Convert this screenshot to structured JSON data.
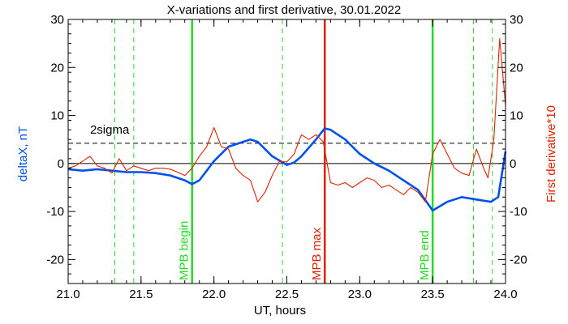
{
  "chart_data": {
    "type": "line",
    "title": "X-variations and first derivative, 30.01.2022",
    "xlabel": "UT, hours",
    "ylabel_left": "deltaX, nT",
    "ylabel_right": "First derivative*10",
    "xlim": [
      21.0,
      24.0
    ],
    "ylim": [
      -25,
      30
    ],
    "x_ticks": [
      "21.0",
      "21.5",
      "22.0",
      "22.5",
      "23.0",
      "23.5",
      "24.0"
    ],
    "x_tick_values": [
      21.0,
      21.5,
      22.0,
      22.5,
      23.0,
      23.5,
      24.0
    ],
    "y_ticks_left": [
      "-20",
      "-10",
      "0",
      "10",
      "20",
      "30"
    ],
    "y_ticks_right": [
      "-20",
      "-10",
      "0",
      "10",
      "20",
      "30"
    ],
    "y_tick_values": [
      -20,
      -10,
      0,
      10,
      20,
      30
    ],
    "zero_line": 0,
    "sigma_level": 4.2,
    "sigma_label": "2sigma",
    "colors": {
      "deltaX": "#0050ee",
      "derivative": "#dd2200",
      "green": "#22dd22",
      "red_marker": "#dd2200",
      "axis": "#000000"
    },
    "series": [
      {
        "name": "deltaX, nT",
        "color": "#0050ee",
        "x": [
          21.0,
          21.1,
          21.2,
          21.3,
          21.4,
          21.5,
          21.6,
          21.7,
          21.8,
          21.85,
          21.9,
          22.0,
          22.1,
          22.2,
          22.25,
          22.3,
          22.4,
          22.5,
          22.55,
          22.6,
          22.7,
          22.76,
          22.8,
          22.9,
          23.0,
          23.1,
          23.2,
          23.3,
          23.4,
          23.5,
          23.6,
          23.7,
          23.8,
          23.9,
          23.95,
          24.0
        ],
        "y": [
          -1.2,
          -1.5,
          -1.2,
          -1.5,
          -1.8,
          -1.8,
          -2.0,
          -2.5,
          -3.5,
          -4.3,
          -3.5,
          0.5,
          3.5,
          4.5,
          5.0,
          4.5,
          1.5,
          -0.3,
          0.2,
          1.5,
          5.0,
          7.3,
          7.0,
          5.0,
          2.0,
          0.0,
          -1.5,
          -3.5,
          -5.5,
          -9.8,
          -8.0,
          -7.0,
          -7.5,
          -8.0,
          -7.0,
          2.5
        ]
      },
      {
        "name": "First derivative*10",
        "color": "#dd2200",
        "x": [
          21.0,
          21.05,
          21.1,
          21.15,
          21.2,
          21.25,
          21.3,
          21.35,
          21.4,
          21.45,
          21.5,
          21.55,
          21.6,
          21.65,
          21.7,
          21.75,
          21.8,
          21.85,
          21.9,
          21.95,
          22.0,
          22.05,
          22.1,
          22.15,
          22.2,
          22.25,
          22.3,
          22.35,
          22.4,
          22.45,
          22.5,
          22.55,
          22.6,
          22.65,
          22.7,
          22.75,
          22.8,
          22.85,
          22.9,
          22.95,
          23.0,
          23.05,
          23.1,
          23.15,
          23.2,
          23.25,
          23.3,
          23.35,
          23.4,
          23.45,
          23.5,
          23.55,
          23.6,
          23.65,
          23.7,
          23.75,
          23.8,
          23.85,
          23.88,
          23.92,
          23.96,
          24.0
        ],
        "y": [
          -1.0,
          -0.5,
          0.5,
          1.5,
          -0.5,
          -1.0,
          -2.0,
          1.0,
          -1.5,
          -0.5,
          -1.0,
          -1.5,
          -1.0,
          -1.0,
          -1.2,
          -1.8,
          -2.5,
          -1.0,
          1.5,
          3.5,
          7.5,
          3.5,
          3.0,
          -1.0,
          -2.5,
          -3.5,
          -8.0,
          -6.0,
          -2.5,
          0.5,
          0.3,
          2.0,
          6.0,
          5.0,
          6.0,
          4.5,
          -4.0,
          -4.5,
          -4.0,
          -5.0,
          -4.0,
          -3.0,
          -3.5,
          -5.0,
          -4.5,
          -5.5,
          -6.5,
          -5.0,
          -6.0,
          -8.0,
          2.0,
          5.0,
          2.0,
          -1.0,
          -2.0,
          -2.5,
          3.0,
          -1.0,
          -3.0,
          5.0,
          26.0,
          12.0
        ]
      }
    ],
    "vertical_lines": [
      {
        "x": 21.32,
        "color": "#22dd22",
        "style": "dashed"
      },
      {
        "x": 21.45,
        "color": "#22dd22",
        "style": "dashed"
      },
      {
        "x": 21.85,
        "color": "#22dd22",
        "style": "solid",
        "label": "MPB begin"
      },
      {
        "x": 22.47,
        "color": "#22dd22",
        "style": "dashed"
      },
      {
        "x": 22.76,
        "color": "#dd2200",
        "style": "solid",
        "label": "MPB max"
      },
      {
        "x": 23.5,
        "color": "#22dd22",
        "style": "solid",
        "label": "MPB end"
      },
      {
        "x": 23.78,
        "color": "#22dd22",
        "style": "dashed"
      },
      {
        "x": 23.91,
        "color": "#22dd22",
        "style": "dashed"
      }
    ]
  }
}
